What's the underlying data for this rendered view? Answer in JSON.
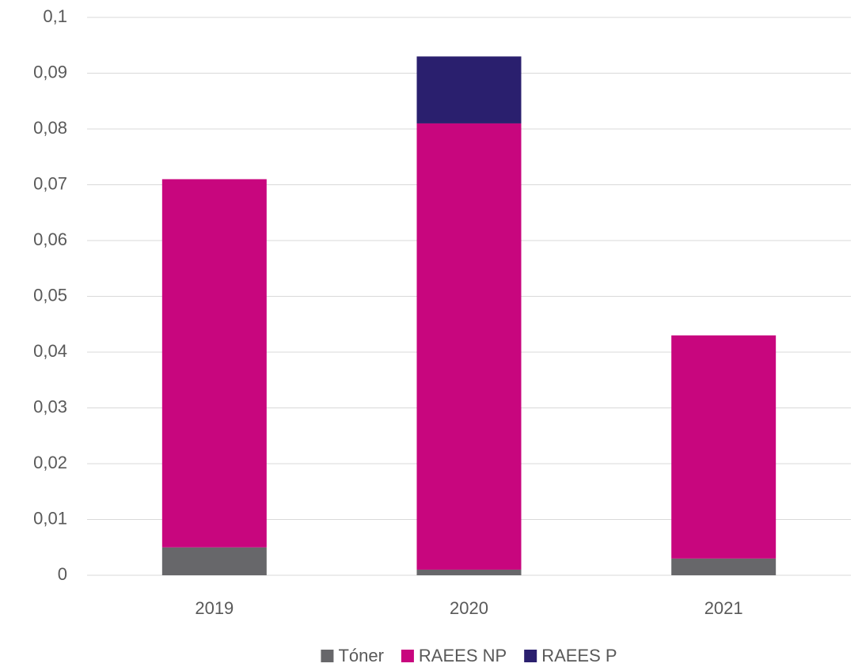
{
  "chart_data": {
    "type": "stacked_bar",
    "categories": [
      "2019",
      "2020",
      "2021"
    ],
    "series": [
      {
        "name": "Tóner",
        "color": "#67676a",
        "values": [
          0.005,
          0.001,
          0.003
        ]
      },
      {
        "name": "RAEES NP",
        "color": "#c8067e",
        "values": [
          0.066,
          0.08,
          0.04
        ]
      },
      {
        "name": "RAEES P",
        "color": "#2a1f6e",
        "values": [
          0,
          0.012,
          0
        ]
      }
    ],
    "ylim": [
      0,
      0.1
    ],
    "yticks": [
      0,
      {
        "value": 0.01,
        "label": "0,01"
      },
      {
        "value": 0.02,
        "label": "0,02"
      },
      {
        "value": 0.03,
        "label": "0,03"
      },
      {
        "value": 0.04,
        "label": "0,04"
      },
      {
        "value": 0.05,
        "label": "0,05"
      },
      {
        "value": 0.06,
        "label": "0,06"
      },
      {
        "value": 0.07,
        "label": "0,07"
      },
      {
        "value": 0.08,
        "label": "0,08"
      },
      {
        "value": 0.09,
        "label": "0,09"
      },
      {
        "value": 0.1,
        "label": "0,1"
      }
    ],
    "grid": true,
    "legend": "bottom"
  }
}
